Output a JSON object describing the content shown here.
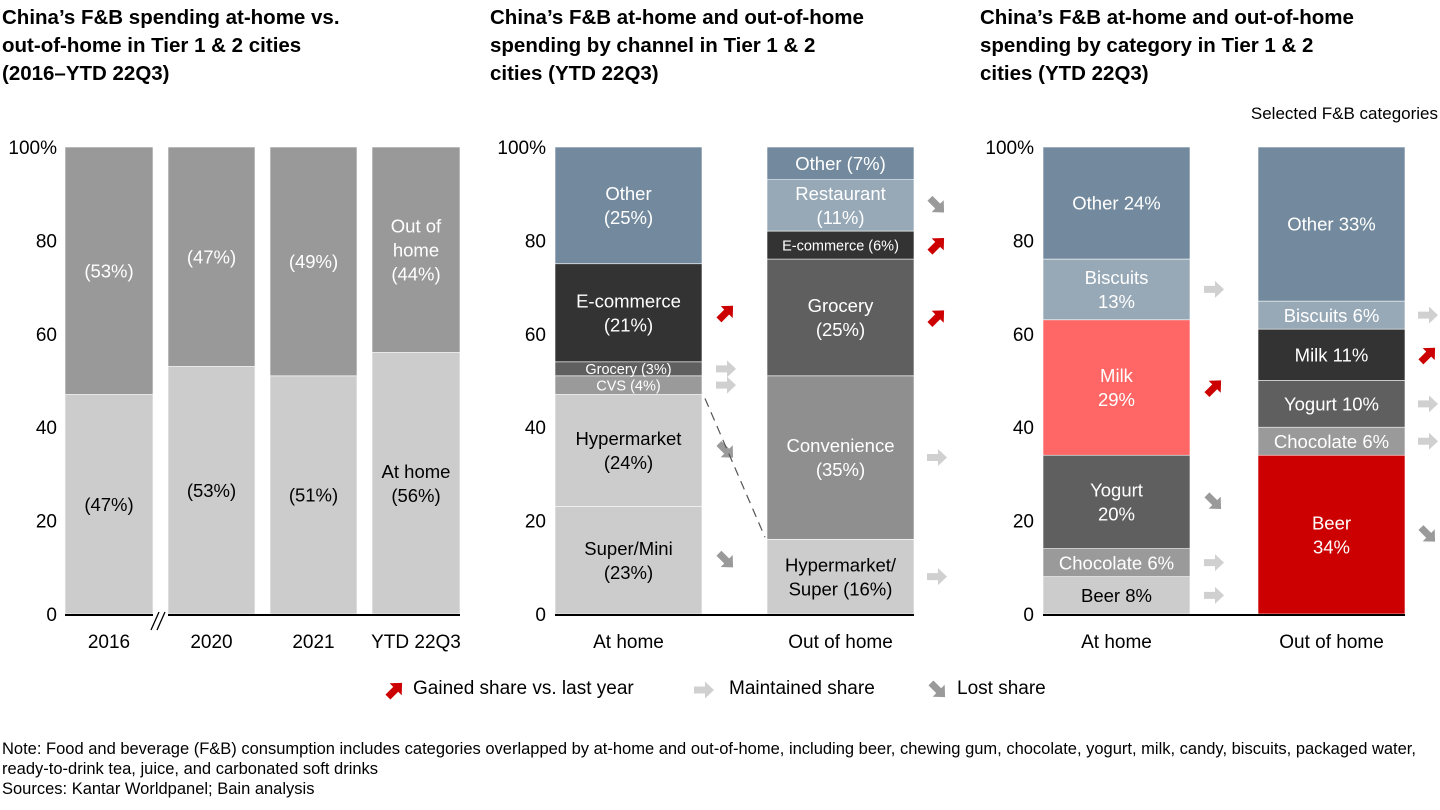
{
  "colors": {
    "gained": "#cc0000",
    "maintained": "#d0d0d0",
    "lost": "#9a9a9a"
  },
  "legend": {
    "gained": "Gained share vs. last year",
    "maintained": "Maintained share",
    "lost": "Lost share"
  },
  "note": "Note: Food and beverage (F&B) consumption includes categories overlapped by at-home and out-of-home, including beer, chewing gum, chocolate, yogurt, milk, candy, biscuits, packaged water, ready-to-drink tea, juice, and carbonated soft drinks",
  "sources": "Sources: Kantar Worldpanel; Bain analysis",
  "chart_data": [
    {
      "type": "bar",
      "stacked": true,
      "title_lines": [
        "China’s F&B spending at-home vs.",
        "out-of-home in Tier 1 & 2 cities",
        "(2016–YTD 22Q3)"
      ],
      "ylim": [
        0,
        100
      ],
      "yticks": [
        "0",
        "20",
        "40",
        "60",
        "80",
        "100%"
      ],
      "categories": [
        "2016",
        "2020",
        "2021",
        "YTD 22Q3"
      ],
      "axis_break_after": "2016",
      "bars": [
        {
          "segments": [
            {
              "name": "At home",
              "value": 47,
              "color": "#cccccc",
              "text_color": "#000000",
              "label": [
                "(47%)"
              ]
            },
            {
              "name": "Out of home",
              "value": 53,
              "color": "#999999",
              "text_color": "#ffffff",
              "label": [
                "(53%)"
              ]
            }
          ]
        },
        {
          "segments": [
            {
              "name": "At home",
              "value": 53,
              "color": "#cccccc",
              "text_color": "#000000",
              "label": [
                "(53%)"
              ]
            },
            {
              "name": "Out of home",
              "value": 47,
              "color": "#999999",
              "text_color": "#ffffff",
              "label": [
                "(47%)"
              ]
            }
          ]
        },
        {
          "segments": [
            {
              "name": "At home",
              "value": 51,
              "color": "#cccccc",
              "text_color": "#000000",
              "label": [
                "(51%)"
              ]
            },
            {
              "name": "Out of home",
              "value": 49,
              "color": "#999999",
              "text_color": "#ffffff",
              "label": [
                "(49%)"
              ]
            }
          ]
        },
        {
          "segments": [
            {
              "name": "At home",
              "value": 56,
              "color": "#cccccc",
              "text_color": "#000000",
              "label": [
                "At home",
                "(56%)"
              ]
            },
            {
              "name": "Out of home",
              "value": 44,
              "color": "#999999",
              "text_color": "#ffffff",
              "label": [
                "Out of",
                "home",
                "(44%)"
              ]
            }
          ]
        }
      ]
    },
    {
      "type": "bar",
      "stacked": true,
      "title_lines": [
        "China’s F&B at-home and out-of-home",
        "spending by channel in Tier 1 & 2",
        "cities (YTD 22Q3)"
      ],
      "ylim": [
        0,
        100
      ],
      "yticks": [
        "0",
        "20",
        "40",
        "60",
        "80",
        "100%"
      ],
      "categories": [
        "At home",
        "Out of home"
      ],
      "connector": "Hypermarket",
      "bars": [
        {
          "segments": [
            {
              "name": "Super/Mini",
              "value": 23,
              "color": "#cccccc",
              "text_color": "#000000",
              "label": [
                "Super/Mini",
                "(23%)"
              ],
              "trend": "lost"
            },
            {
              "name": "Hypermarket",
              "value": 24,
              "color": "#cccccc",
              "text_color": "#000000",
              "label": [
                "Hypermarket",
                "(24%)"
              ],
              "trend": "lost"
            },
            {
              "name": "CVS",
              "value": 4,
              "color": "#9a9a9a",
              "text_color": "#ffffff",
              "label": [
                "CVS (4%)"
              ],
              "trend": "maintained",
              "small": true
            },
            {
              "name": "Grocery",
              "value": 3,
              "color": "#5f5f5f",
              "text_color": "#ffffff",
              "label": [
                "Grocery (3%)"
              ],
              "trend": "maintained",
              "small": true
            },
            {
              "name": "E-commerce",
              "value": 21,
              "color": "#333333",
              "text_color": "#ffffff",
              "label": [
                "E-commerce",
                "(21%)"
              ],
              "trend": "gained"
            },
            {
              "name": "Other",
              "value": 25,
              "color": "#738a9e",
              "text_color": "#ffffff",
              "label": [
                "Other",
                "(25%)"
              ]
            }
          ]
        },
        {
          "segments": [
            {
              "name": "Hypermarket/Super",
              "value": 16,
              "color": "#cccccc",
              "text_color": "#000000",
              "label": [
                "Hypermarket/",
                "Super (16%)"
              ],
              "trend": "maintained"
            },
            {
              "name": "Convenience",
              "value": 35,
              "color": "#8f8f8f",
              "text_color": "#ffffff",
              "label": [
                "Convenience",
                "(35%)"
              ],
              "trend": "maintained"
            },
            {
              "name": "Grocery",
              "value": 25,
              "color": "#5f5f5f",
              "text_color": "#ffffff",
              "label": [
                "Grocery",
                "(25%)"
              ],
              "trend": "gained"
            },
            {
              "name": "E-commerce",
              "value": 6,
              "color": "#333333",
              "text_color": "#ffffff",
              "label": [
                "E-commerce (6%)"
              ],
              "trend": "gained",
              "small": true
            },
            {
              "name": "Restaurant",
              "value": 11,
              "color": "#97a9b7",
              "text_color": "#ffffff",
              "label": [
                "Restaurant",
                "(11%)"
              ],
              "trend": "lost"
            },
            {
              "name": "Other",
              "value": 7,
              "color": "#738a9e",
              "text_color": "#ffffff",
              "label": [
                "Other (7%)"
              ]
            }
          ]
        }
      ]
    },
    {
      "type": "bar",
      "stacked": true,
      "title_lines": [
        "China’s F&B at-home and out-of-home",
        "spending by category in Tier 1 & 2",
        "cities (YTD 22Q3)"
      ],
      "subtitle": "Selected F&B categories",
      "ylim": [
        0,
        100
      ],
      "yticks": [
        "0",
        "20",
        "40",
        "60",
        "80",
        "100%"
      ],
      "categories": [
        "At home",
        "Out of home"
      ],
      "bars": [
        {
          "segments": [
            {
              "name": "Beer",
              "value": 8,
              "color": "#cccccc",
              "text_color": "#000000",
              "label": [
                "Beer 8%"
              ],
              "trend": "maintained"
            },
            {
              "name": "Chocolate",
              "value": 6,
              "color": "#9a9a9a",
              "text_color": "#ffffff",
              "label": [
                "Chocolate 6%"
              ],
              "trend": "maintained"
            },
            {
              "name": "Yogurt",
              "value": 20,
              "color": "#5f5f5f",
              "text_color": "#ffffff",
              "label": [
                "Yogurt",
                "20%"
              ],
              "trend": "lost"
            },
            {
              "name": "Milk",
              "value": 29,
              "color": "#ff6666",
              "text_color": "#ffffff",
              "label": [
                "Milk",
                "29%"
              ],
              "trend": "gained"
            },
            {
              "name": "Biscuits",
              "value": 13,
              "color": "#97a9b7",
              "text_color": "#ffffff",
              "label": [
                "Biscuits",
                "13%"
              ],
              "trend": "maintained"
            },
            {
              "name": "Other",
              "value": 24,
              "color": "#738a9e",
              "text_color": "#ffffff",
              "label": [
                "Other 24%"
              ]
            }
          ]
        },
        {
          "segments": [
            {
              "name": "Beer",
              "value": 34,
              "color": "#cc0000",
              "text_color": "#ffffff",
              "label": [
                "Beer",
                "34%"
              ],
              "trend": "lost"
            },
            {
              "name": "Chocolate",
              "value": 6,
              "color": "#9a9a9a",
              "text_color": "#ffffff",
              "label": [
                "Chocolate 6%"
              ],
              "trend": "maintained"
            },
            {
              "name": "Yogurt",
              "value": 10,
              "color": "#5f5f5f",
              "text_color": "#ffffff",
              "label": [
                "Yogurt 10%"
              ],
              "trend": "maintained"
            },
            {
              "name": "Milk",
              "value": 11,
              "color": "#333333",
              "text_color": "#ffffff",
              "label": [
                "Milk 11%"
              ],
              "trend": "gained"
            },
            {
              "name": "Biscuits",
              "value": 6,
              "color": "#97a9b7",
              "text_color": "#ffffff",
              "label": [
                "Biscuits 6%"
              ],
              "trend": "maintained"
            },
            {
              "name": "Other",
              "value": 33,
              "color": "#738a9e",
              "text_color": "#ffffff",
              "label": [
                "Other 33%"
              ]
            }
          ]
        }
      ]
    }
  ]
}
